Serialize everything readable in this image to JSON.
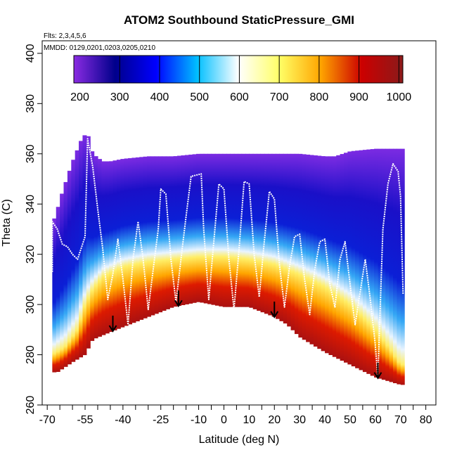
{
  "chart_data": {
    "type": "heatmap",
    "title": "ATOM2 Southbound StaticPressure_GMI",
    "flights_label": "Flts: 2,3,4,5,6",
    "dates_label": "MMDD: 0129,0201,0203,0205,0210",
    "xlabel": "Latitude (deg N)",
    "ylabel": "Theta (C)",
    "xlim": [
      -72,
      84
    ],
    "ylim": [
      260,
      405
    ],
    "x_ticks": [
      -70,
      -55,
      -40,
      -25,
      -10,
      0,
      10,
      20,
      30,
      40,
      50,
      60,
      70,
      80
    ],
    "x_ticks_extra": [
      -65,
      -60,
      -50,
      -45,
      -35,
      -30,
      -20,
      -15,
      -5,
      5,
      15,
      25,
      35,
      45,
      55,
      65,
      75
    ],
    "y_ticks": [
      260,
      280,
      300,
      320,
      340,
      360,
      380,
      400
    ],
    "colorbar": {
      "ticks": [
        200,
        300,
        400,
        500,
        600,
        700,
        800,
        900,
        1000
      ],
      "range": [
        185,
        1010
      ],
      "stops": [
        "#8a2be2",
        "#00008b",
        "#0000ff",
        "#00bfff",
        "#ffffff",
        "#ffff66",
        "#ffa500",
        "#cc0000",
        "#8b1a1a"
      ]
    },
    "field_top": [
      [
        -68,
        332
      ],
      [
        -66,
        338
      ],
      [
        -64,
        345
      ],
      [
        -62,
        351
      ],
      [
        -60,
        357
      ],
      [
        -58,
        362
      ],
      [
        -56,
        367
      ],
      [
        -54,
        368
      ],
      [
        -52,
        360
      ],
      [
        -48,
        357
      ],
      [
        -45,
        357
      ],
      [
        -40,
        358
      ],
      [
        -30,
        359
      ],
      [
        -20,
        359
      ],
      [
        -10,
        360
      ],
      [
        0,
        360
      ],
      [
        10,
        360
      ],
      [
        20,
        360
      ],
      [
        30,
        360
      ],
      [
        40,
        359
      ],
      [
        44,
        359
      ],
      [
        50,
        361
      ],
      [
        60,
        362
      ],
      [
        70,
        362
      ]
    ],
    "field_bottom": [
      [
        -68,
        273
      ],
      [
        -66,
        273
      ],
      [
        -60,
        277
      ],
      [
        -55,
        280
      ],
      [
        -52,
        286
      ],
      [
        -45,
        289
      ],
      [
        -40,
        291
      ],
      [
        -30,
        295
      ],
      [
        -20,
        299
      ],
      [
        -10,
        301
      ],
      [
        0,
        299
      ],
      [
        10,
        299
      ],
      [
        20,
        295
      ],
      [
        25,
        292
      ],
      [
        30,
        287
      ],
      [
        40,
        281
      ],
      [
        50,
        276
      ],
      [
        60,
        271
      ],
      [
        70,
        268
      ]
    ],
    "isosurface_700": [
      [
        -68,
        280
      ],
      [
        -63,
        283
      ],
      [
        -58,
        290
      ],
      [
        -55,
        300
      ],
      [
        -52,
        306
      ],
      [
        -48,
        311
      ],
      [
        -40,
        315
      ],
      [
        -30,
        317
      ],
      [
        -20,
        318
      ],
      [
        -10,
        319
      ],
      [
        0,
        319
      ],
      [
        10,
        318
      ],
      [
        20,
        316
      ],
      [
        30,
        312
      ],
      [
        40,
        307
      ],
      [
        50,
        300
      ],
      [
        60,
        290
      ],
      [
        66,
        282
      ],
      [
        70,
        276
      ]
    ],
    "arrows_x": [
      -44,
      -18,
      20,
      61
    ],
    "flight_track": [
      [
        -68,
        313
      ],
      [
        -68,
        333
      ],
      [
        -66,
        330
      ],
      [
        -64,
        324
      ],
      [
        -62,
        323
      ],
      [
        -60,
        320
      ],
      [
        -58,
        318
      ],
      [
        -55,
        327
      ],
      [
        -54,
        366
      ],
      [
        -52,
        355
      ],
      [
        -50,
        338
      ],
      [
        -48,
        322
      ],
      [
        -46,
        302
      ],
      [
        -44,
        312
      ],
      [
        -42,
        326
      ],
      [
        -40,
        310
      ],
      [
        -38,
        292
      ],
      [
        -36,
        318
      ],
      [
        -34,
        333
      ],
      [
        -32,
        318
      ],
      [
        -30,
        298
      ],
      [
        -28,
        314
      ],
      [
        -26,
        330
      ],
      [
        -25,
        346
      ],
      [
        -23,
        344
      ],
      [
        -21,
        318
      ],
      [
        -19,
        301
      ],
      [
        -17,
        318
      ],
      [
        -15,
        335
      ],
      [
        -13,
        351
      ],
      [
        -9,
        352
      ],
      [
        -8,
        330
      ],
      [
        -6,
        302
      ],
      [
        -4,
        325
      ],
      [
        -2,
        348
      ],
      [
        0,
        346
      ],
      [
        2,
        318
      ],
      [
        4,
        298
      ],
      [
        6,
        322
      ],
      [
        8,
        349
      ],
      [
        10,
        348
      ],
      [
        12,
        320
      ],
      [
        14,
        303
      ],
      [
        16,
        325
      ],
      [
        18,
        345
      ],
      [
        20,
        342
      ],
      [
        22,
        316
      ],
      [
        24,
        299
      ],
      [
        26,
        315
      ],
      [
        28,
        327
      ],
      [
        30,
        328
      ],
      [
        32,
        310
      ],
      [
        34,
        296
      ],
      [
        36,
        314
      ],
      [
        38,
        325
      ],
      [
        40,
        326
      ],
      [
        42,
        308
      ],
      [
        44,
        299
      ],
      [
        46,
        318
      ],
      [
        48,
        325
      ],
      [
        50,
        308
      ],
      [
        52,
        292
      ],
      [
        54,
        305
      ],
      [
        56,
        318
      ],
      [
        58,
        302
      ],
      [
        60,
        284
      ],
      [
        61,
        271
      ],
      [
        63,
        330
      ],
      [
        65,
        348
      ],
      [
        67,
        356
      ],
      [
        69,
        353
      ],
      [
        70,
        343
      ],
      [
        71,
        304
      ]
    ]
  }
}
